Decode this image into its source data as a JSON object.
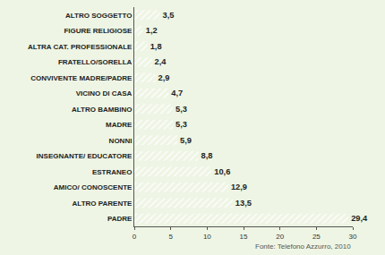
{
  "chart_data": {
    "type": "bar",
    "orientation": "horizontal",
    "categories": [
      "ALTRO SOGGETTO",
      "FIGURE RELIGIOSE",
      "ALTRA CAT. PROFESSIONALE",
      "FRATELLO/SORELLA",
      "CONVIVENTE MADRE/PADRE",
      "VICINO DI CASA",
      "ALTRO BAMBINO",
      "MADRE",
      "NONNI",
      "INSEGNANTE/ EDUCATORE",
      "ESTRANEO",
      "AMICO/ CONOSCENTE",
      "ALTRO PARENTE",
      "PADRE"
    ],
    "values": [
      3.5,
      1.2,
      1.8,
      2.4,
      2.9,
      4.7,
      5.3,
      5.3,
      5.9,
      8.8,
      10.6,
      12.9,
      13.5,
      29.4
    ],
    "value_labels": [
      "3,5",
      "1,2",
      "1,8",
      "2,4",
      "2,9",
      "4,7",
      "5,3",
      "5,3",
      "5,9",
      "8,8",
      "10,6",
      "12,9",
      "13,5",
      "29,4"
    ],
    "data_labels": true,
    "color": "#7b7fdc",
    "xlim": [
      0,
      30
    ],
    "xticks": [
      0,
      5,
      10,
      15,
      20,
      25,
      30
    ],
    "grid": false,
    "annotations": [
      "Fonte: Telefono Azzurro, 2010"
    ]
  }
}
